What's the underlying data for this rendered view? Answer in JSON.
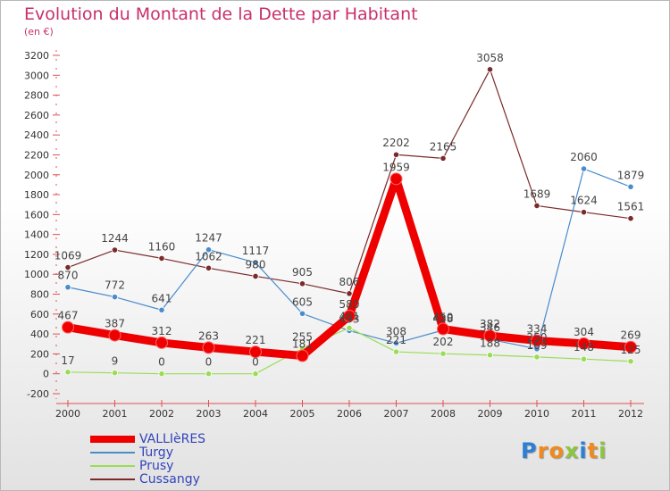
{
  "header": {
    "title": "Evolution du Montant de la Dette par Habitant",
    "unit": "(en €)"
  },
  "logo": {
    "letters": [
      "P",
      "r",
      "o",
      "x",
      "i",
      "t",
      "i"
    ],
    "colors": [
      "#2d7fd6",
      "#f08a1c",
      "#f08a1c",
      "#8cc63f",
      "#2d7fd6",
      "#f08a1c",
      "#8cc63f"
    ]
  },
  "chart_data": {
    "type": "line",
    "title": "Evolution du Montant de la Dette par Habitant",
    "ylabel": "(en €)",
    "xlabel": "",
    "x": [
      "2000",
      "2001",
      "2002",
      "2003",
      "2004",
      "2005",
      "2006",
      "2007",
      "2008",
      "2009",
      "2010",
      "2011",
      "2012"
    ],
    "ylim": [
      -200,
      3200
    ],
    "yticks": [
      -200,
      0,
      200,
      400,
      600,
      800,
      1000,
      1200,
      1400,
      1600,
      1800,
      2000,
      2200,
      2400,
      2600,
      2800,
      3000,
      3200
    ],
    "grid": false,
    "legend_position": "bottom-left",
    "series": [
      {
        "name": "VALLIèRES",
        "color": "#ee0000",
        "width": 9,
        "values": [
          467,
          387,
          312,
          263,
          221,
          181,
          580,
          1959,
          450,
          382,
          334,
          304,
          269
        ],
        "labels": [
          "467",
          "387",
          "312",
          "263",
          "221",
          "181",
          "580",
          "1959",
          "450",
          "382",
          "334",
          "304",
          "269"
        ]
      },
      {
        "name": "Turgy",
        "color": "#4a8ccb",
        "width": 1.2,
        "values": [
          870,
          772,
          641,
          1247,
          1117,
          605,
          433,
          308,
          438,
          346,
          250,
          2060,
          1879
        ],
        "labels": [
          "870",
          "772",
          "641",
          "1247",
          "1117",
          "605",
          "433",
          "308",
          "438",
          "346",
          "250",
          "2060",
          "1879"
        ]
      },
      {
        "name": "Prusy",
        "color": "#99dd55",
        "width": 1.2,
        "values": [
          17,
          9,
          0,
          0,
          0,
          255,
          461,
          221,
          202,
          188,
          169,
          148,
          125
        ],
        "labels": [
          "17",
          "9",
          "0",
          "0",
          "0",
          "255",
          "461",
          "221",
          "202",
          "188",
          "169",
          "148",
          "125"
        ]
      },
      {
        "name": "Cussangy",
        "color": "#7a2a2a",
        "width": 1.2,
        "values": [
          1069,
          1244,
          1160,
          1062,
          980,
          905,
          806,
          2202,
          2165,
          3058,
          1689,
          1624,
          1561
        ],
        "labels": [
          "1069",
          "1244",
          "1160",
          "1062",
          "980",
          "905",
          "806",
          "2202",
          "2165",
          "3058",
          "1689",
          "1624",
          "1561"
        ]
      }
    ]
  }
}
